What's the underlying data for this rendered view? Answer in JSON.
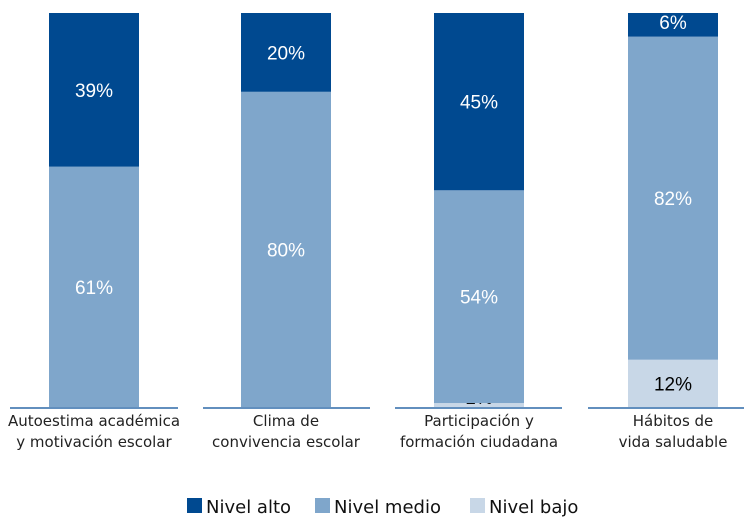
{
  "chart_data": {
    "type": "bar",
    "stacked": true,
    "categories": [
      [
        "Autoestima académica",
        "y motivación escolar"
      ],
      [
        "Clima de",
        "convivencia escolar"
      ],
      [
        "Participación y",
        "formación ciudadana"
      ],
      [
        "Hábitos de",
        "vida saludable"
      ]
    ],
    "series": [
      {
        "name": "Nivel bajo",
        "values": [
          0,
          0,
          1,
          12
        ],
        "labels": [
          "",
          "",
          "1%",
          "12%"
        ]
      },
      {
        "name": "Nivel medio",
        "values": [
          61,
          80,
          54,
          82
        ],
        "labels": [
          "61%",
          "80%",
          "54%",
          "82%"
        ]
      },
      {
        "name": "Nivel alto",
        "values": [
          39,
          20,
          45,
          6
        ],
        "labels": [
          "39%",
          "20%",
          "45%",
          "6%"
        ]
      }
    ],
    "ylim": [
      0,
      100
    ],
    "grid": false,
    "legend": {
      "position": "bottom",
      "order": [
        "Nivel alto",
        "Nivel medio",
        "Nivel bajo"
      ]
    },
    "colors": {
      "Nivel alto": "#004990",
      "Nivel medio": "#7fa6cb",
      "Nivel bajo": "#c8d7e7",
      "axis": "#2f6aa8"
    }
  }
}
